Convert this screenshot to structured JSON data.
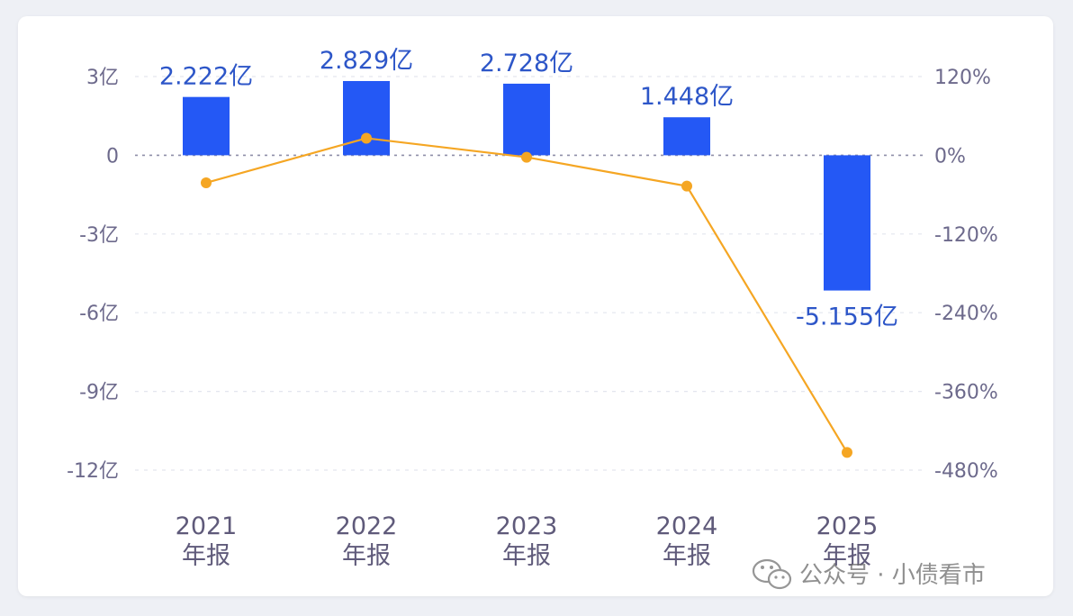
{
  "chart_data": {
    "type": "bar+line",
    "categories": [
      [
        "2021",
        "年报"
      ],
      [
        "2022",
        "年报"
      ],
      [
        "2023",
        "年报"
      ],
      [
        "2024",
        "年报"
      ],
      [
        "2025",
        "年报"
      ]
    ],
    "bar_series": {
      "values": [
        2.222,
        2.829,
        2.728,
        1.448,
        -5.155
      ],
      "labels": [
        "2.222亿",
        "2.829亿",
        "2.728亿",
        "1.448亿",
        "-5.155亿"
      ],
      "color": "#2458f5"
    },
    "line_series": {
      "values": [
        -42,
        26,
        -3,
        -47,
        -453
      ],
      "color": "#f5a623"
    },
    "left_axis": {
      "ylim": [
        -12,
        3
      ],
      "ticks": [
        3,
        0,
        -3,
        -6,
        -9,
        -12
      ],
      "tick_labels": [
        "3亿",
        "0",
        "-3亿",
        "-6亿",
        "-9亿",
        "-12亿"
      ]
    },
    "right_axis": {
      "ylim": [
        -480,
        120
      ],
      "tick_labels": [
        "120%",
        "0%",
        "-120%",
        "-240%",
        "-360%",
        "-480%"
      ]
    },
    "grid": "dashed horizontal"
  },
  "watermark": {
    "text": "公众号 · 小债看市"
  }
}
